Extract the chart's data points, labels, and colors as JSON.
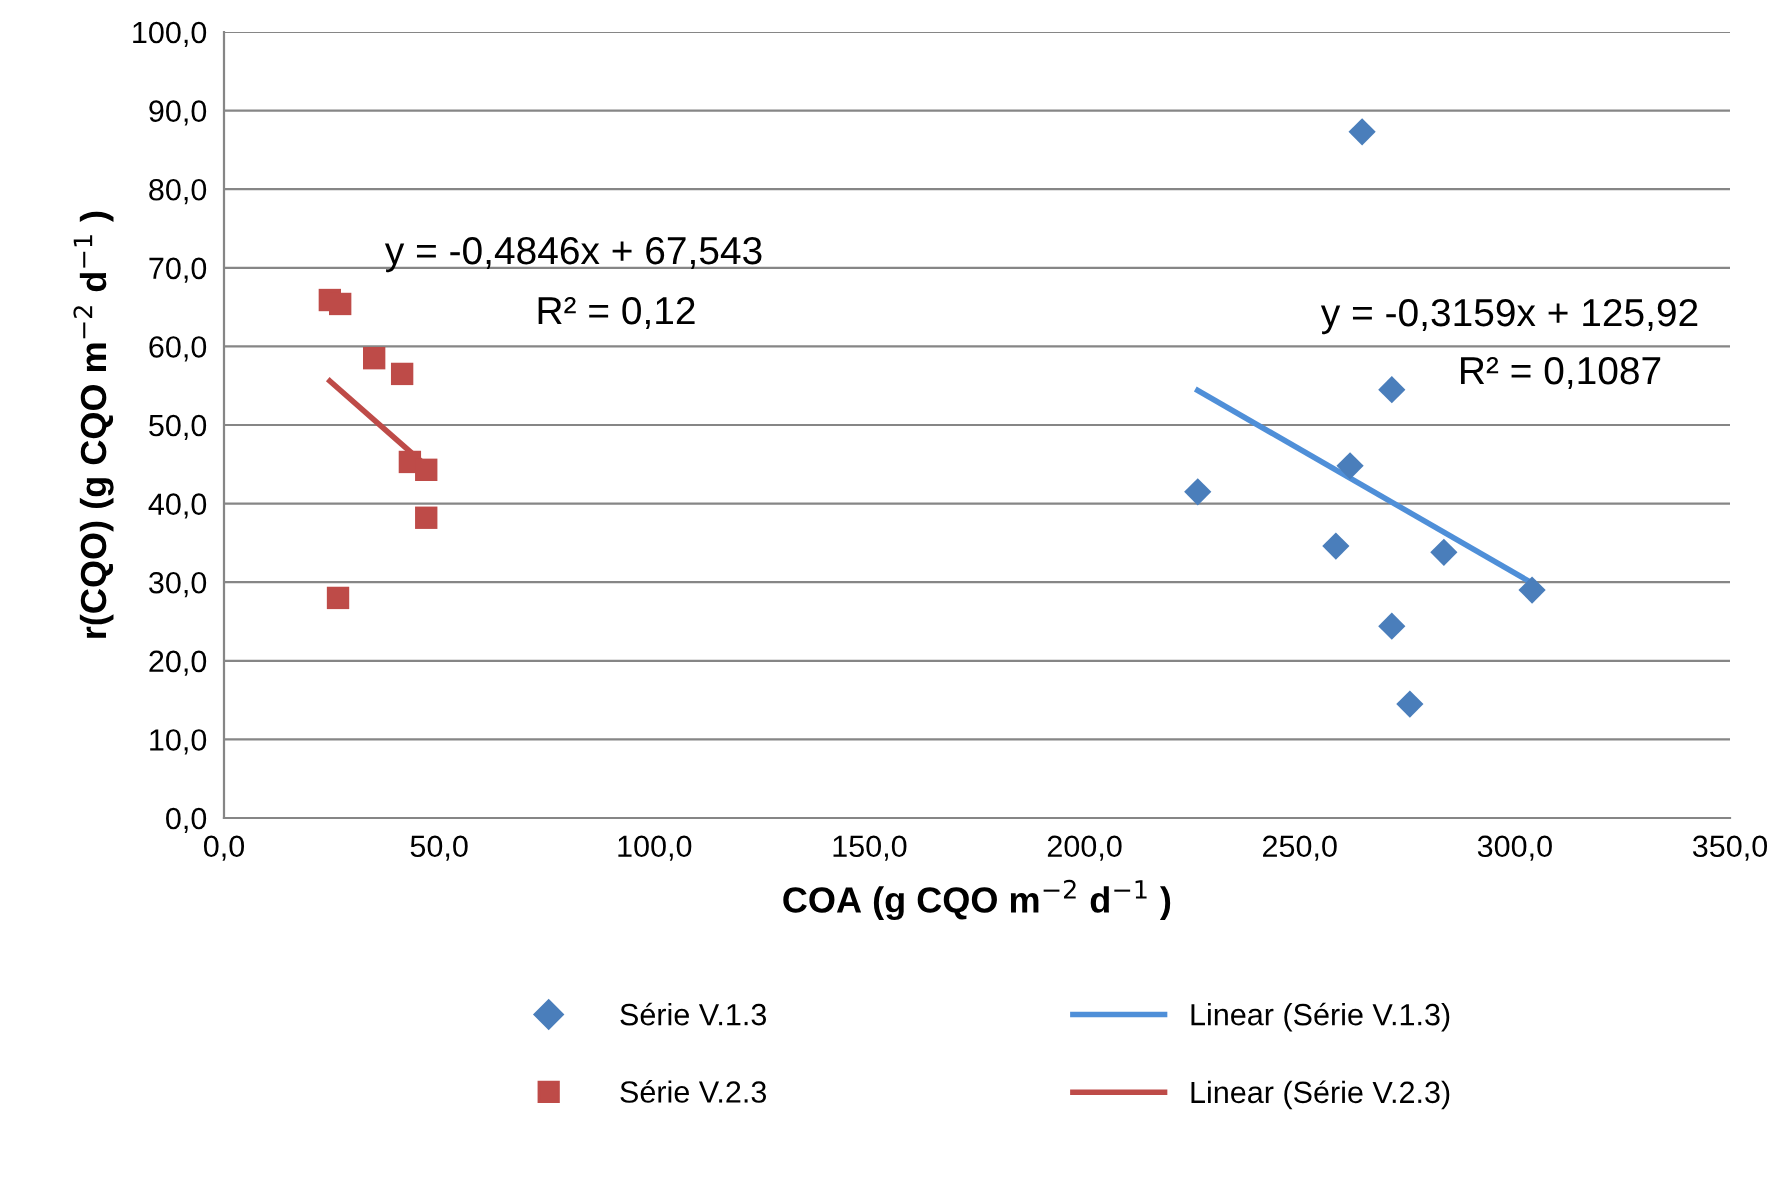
{
  "chart_data": {
    "type": "scatter",
    "xlabel": "COA (g CQO m$^{−2}$ d$^{−1}$ )",
    "ylabel": "r(CQO) (g CQO m$^{−2}$ d$^{−1}$ )",
    "series": [
      {
        "name": "Série V.1.3",
        "color": "#4a7ebb",
        "marker": "diamond",
        "x": [
          226.3,
          258.4,
          261.7,
          264.5,
          271.4,
          271.4,
          283.5,
          275.6,
          304.0
        ],
        "values": [
          41.5,
          34.6,
          44.8,
          87.3,
          54.5,
          24.4,
          33.8,
          14.5,
          29.0
        ]
      },
      {
        "name": "Série V.2.3",
        "color": "#be4b48",
        "marker": "square",
        "x": [
          24.6,
          27.0,
          34.9,
          41.4,
          43.2,
          47.0,
          47.0,
          26.5
        ],
        "values": [
          65.9,
          65.4,
          58.5,
          56.5,
          45.3,
          44.3,
          38.2,
          28.0
        ]
      },
      {
        "name": "Linear (Série V.1.3)",
        "type": "line",
        "color": "#4f8fd8",
        "x": [
          226.3,
          304.0
        ],
        "values": [
          54.4,
          29.9
        ]
      },
      {
        "name": "Linear (Série V.2.3)",
        "type": "line",
        "color": "#be4b48",
        "x": [
          24.6,
          47.0
        ],
        "values": [
          55.6,
          44.8
        ]
      }
    ],
    "annotations": [
      "y = -0,4846x + 67,543",
      "R² = 0,12",
      "y = -0,3159x + 125,92",
      "R² = 0,1087"
    ],
    "xlim": [
      0,
      350
    ],
    "xticks": [
      {
        "value": 0,
        "label": "0,0"
      },
      {
        "value": 50,
        "label": "50,0"
      },
      {
        "value": 100,
        "label": "100,0"
      },
      {
        "value": 150,
        "label": "150,0"
      },
      {
        "value": 200,
        "label": "200,0"
      },
      {
        "value": 250,
        "label": "250,0"
      },
      {
        "value": 300,
        "label": "300,0"
      },
      {
        "value": 350,
        "label": "350,0"
      }
    ],
    "ylim": [
      0,
      100
    ],
    "yticks": [
      {
        "value": 0,
        "label": "0,0"
      },
      {
        "value": 10,
        "label": "10,0"
      },
      {
        "value": 20,
        "label": "20,0"
      },
      {
        "value": 30,
        "label": "30,0"
      },
      {
        "value": 40,
        "label": "40,0"
      },
      {
        "value": 50,
        "label": "50,0"
      },
      {
        "value": 60,
        "label": "60,0"
      },
      {
        "value": 70,
        "label": "70,0"
      },
      {
        "value": 80,
        "label": "80,0"
      },
      {
        "value": 90,
        "label": "90,0"
      },
      {
        "value": 100,
        "label": "100,0"
      }
    ],
    "grid": "y",
    "legend": "bottom"
  }
}
